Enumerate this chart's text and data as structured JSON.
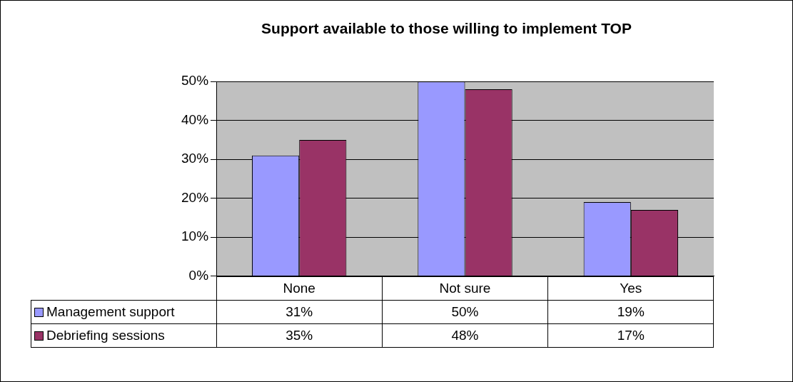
{
  "chart_data": {
    "type": "bar",
    "title": "Support available to those willing to implement TOP",
    "categories": [
      "None",
      "Not sure",
      "Yes"
    ],
    "series": [
      {
        "name": "Management support",
        "color": "#9999ff",
        "values": [
          31,
          50,
          19
        ],
        "value_labels": [
          "31%",
          "50%",
          "19%"
        ]
      },
      {
        "name": "Debriefing sessions",
        "color": "#993366",
        "values": [
          35,
          48,
          17
        ],
        "value_labels": [
          "35%",
          "48%",
          "17%"
        ]
      }
    ],
    "ylim": [
      0,
      50
    ],
    "yticks": [
      {
        "value": 0,
        "label": "0%"
      },
      {
        "value": 10,
        "label": "10%"
      },
      {
        "value": 20,
        "label": "20%"
      },
      {
        "value": 30,
        "label": "30%"
      },
      {
        "value": 40,
        "label": "40%"
      },
      {
        "value": 50,
        "label": "50%"
      }
    ],
    "grid": "y",
    "legend": "bottom"
  }
}
